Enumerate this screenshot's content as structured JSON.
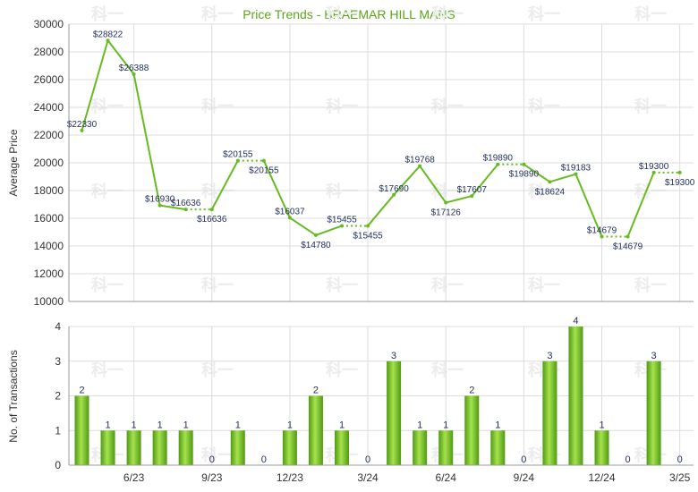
{
  "chart_data": [
    {
      "type": "line",
      "title": "Price Trends - BRAEMAR HILL MANS",
      "xlabel": "",
      "ylabel": "Average Price",
      "ylim": [
        10000,
        30000
      ],
      "yticks": [
        10000,
        12000,
        14000,
        16000,
        18000,
        20000,
        22000,
        24000,
        26000,
        28000,
        30000
      ],
      "grid": true,
      "color": "#66bb22",
      "series": [
        {
          "months_from_start": [
            0,
            1,
            2,
            3,
            4,
            5,
            6,
            7,
            8,
            9,
            10,
            11,
            12,
            13,
            14,
            15,
            16,
            17,
            18,
            19,
            20,
            21,
            22,
            23
          ],
          "values": [
            22330,
            28822,
            26388,
            16930,
            16636,
            16636,
            20155,
            20155,
            16037,
            14780,
            15455,
            15455,
            17690,
            19768,
            17126,
            17607,
            19890,
            19890,
            18624,
            19183,
            14679,
            14679,
            19300,
            19300
          ],
          "labels": [
            "$22330",
            "$28822",
            "$26388",
            "$16930",
            "$16636",
            "$16636",
            "$20155",
            "$20155",
            "$16037",
            "$14780",
            "$15455",
            "$15455",
            "$17690",
            "$19768",
            "$17126",
            "$17607",
            "$19890",
            "$19890",
            "$18624",
            "$19183",
            "$14679",
            "$14679",
            "$19300",
            "$19300"
          ],
          "carried_forward": [
            false,
            false,
            false,
            false,
            false,
            true,
            false,
            true,
            false,
            false,
            false,
            true,
            false,
            false,
            false,
            false,
            false,
            true,
            false,
            false,
            false,
            true,
            false,
            true
          ]
        }
      ]
    },
    {
      "type": "bar",
      "title": "",
      "xlabel": "",
      "ylabel": "No. of Transactions",
      "ylim": [
        0,
        4
      ],
      "yticks": [
        0,
        1,
        2,
        3,
        4
      ],
      "grid": true,
      "color": "#66bb22",
      "months_from_start": [
        0,
        1,
        2,
        3,
        4,
        5,
        6,
        7,
        8,
        9,
        10,
        11,
        12,
        13,
        14,
        15,
        16,
        17,
        18,
        19,
        20,
        21,
        22,
        23
      ],
      "values": [
        2,
        1,
        1,
        1,
        1,
        0,
        1,
        0,
        1,
        2,
        1,
        0,
        3,
        1,
        1,
        2,
        1,
        0,
        3,
        4,
        1,
        0,
        3,
        0
      ]
    }
  ],
  "x_axis": {
    "tick_labels": [
      "6/23",
      "9/23",
      "12/23",
      "3/24",
      "6/24",
      "9/24",
      "12/24",
      "3/25"
    ],
    "tick_months_from_start": [
      2,
      5,
      8,
      11,
      14,
      17,
      20,
      23
    ]
  },
  "watermark": "科一"
}
